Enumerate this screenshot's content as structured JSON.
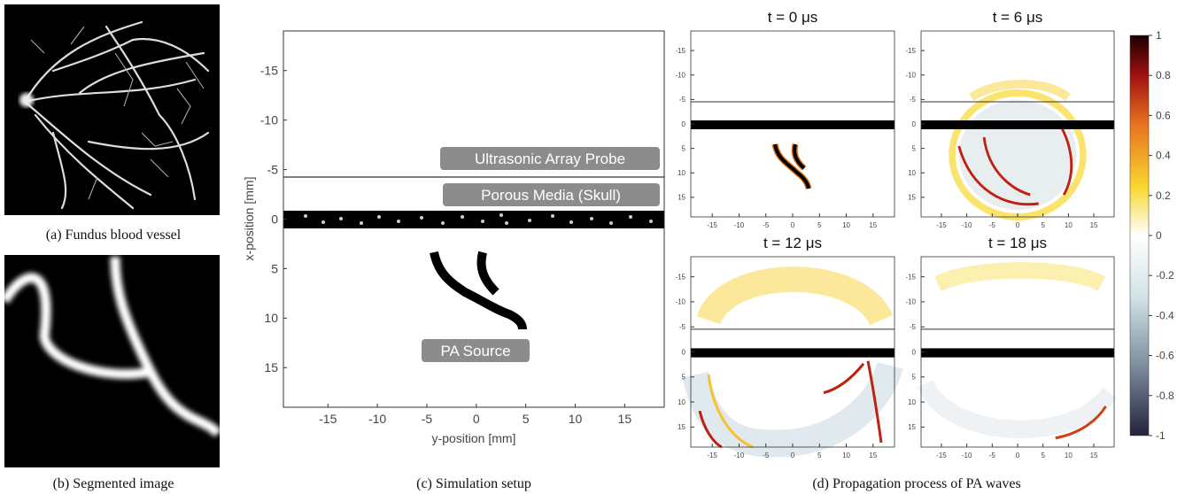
{
  "figure": {
    "panel_a": {
      "caption": "(a) Fundus blood vessel"
    },
    "panel_b": {
      "caption": "(b) Segmented image"
    },
    "panel_c": {
      "caption": "(c) Simulation setup",
      "xlabel": "y-position [mm]",
      "ylabel": "x-position [mm]",
      "xlim": [
        -19.5,
        19
      ],
      "ylim": [
        -19,
        19
      ],
      "xticks": [
        -15,
        -10,
        -5,
        0,
        5,
        10,
        15
      ],
      "yticks": [
        -15,
        -10,
        -5,
        0,
        5,
        10,
        15
      ],
      "annotations": [
        "Ultrasonic Array Probe",
        "Porous Media (Skull)",
        "PA Source"
      ]
    },
    "panel_d": {
      "caption": "(d) Propagation process of PA waves",
      "titles": [
        "t = 0 μs",
        "t = 6 μs",
        "t = 12 μs",
        "t = 18 μs"
      ],
      "xlim": [
        -19,
        19
      ],
      "ylim": [
        -19,
        19
      ],
      "xticks": [
        -15,
        -10,
        -5,
        0,
        5,
        10,
        15
      ],
      "yticks": [
        -15,
        -10,
        -5,
        0,
        5,
        10,
        15
      ],
      "colorbar": {
        "lim": [
          -1,
          1
        ],
        "ticks": [
          1,
          0.8,
          0.6,
          0.4,
          0.2,
          0,
          -0.2,
          -0.4,
          -0.6,
          -0.8,
          -1
        ]
      }
    }
  }
}
